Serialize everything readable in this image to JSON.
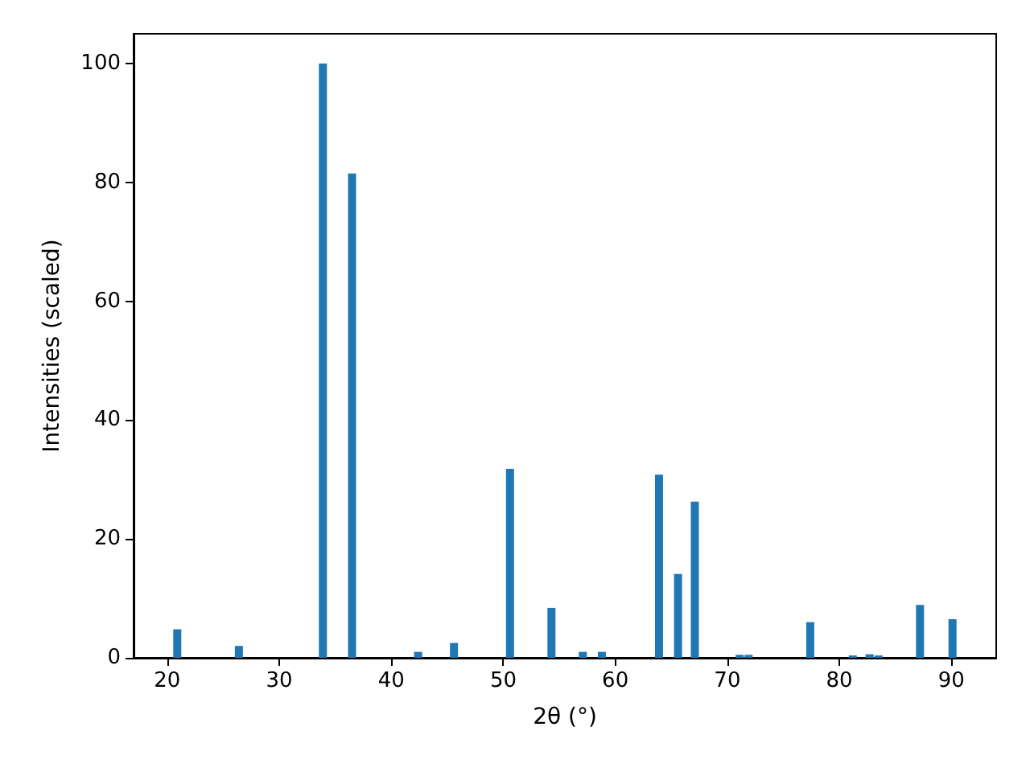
{
  "chart_data": {
    "type": "bar",
    "xlabel": "2θ (°)",
    "ylabel": "Intensities (scaled)",
    "x": [
      20.9,
      26.4,
      33.9,
      36.5,
      42.4,
      45.6,
      50.6,
      54.3,
      57.1,
      58.8,
      63.9,
      65.6,
      67.1,
      71.1,
      71.9,
      77.4,
      81.2,
      82.7,
      83.5,
      87.2,
      90.1
    ],
    "values": [
      4.8,
      2,
      100,
      81.5,
      1,
      2.5,
      31.8,
      8.4,
      1,
      1,
      30.8,
      14.1,
      26.3,
      0.5,
      0.5,
      6,
      0.4,
      0.6,
      0.4,
      8.9,
      6.5
    ],
    "color": "#1f77b4",
    "xlim": [
      17,
      94
    ],
    "ylim": [
      0,
      105
    ],
    "xticks": [
      20,
      30,
      40,
      50,
      60,
      70,
      80,
      90
    ],
    "yticks": [
      0,
      20,
      40,
      60,
      80,
      100
    ],
    "grid": false
  }
}
